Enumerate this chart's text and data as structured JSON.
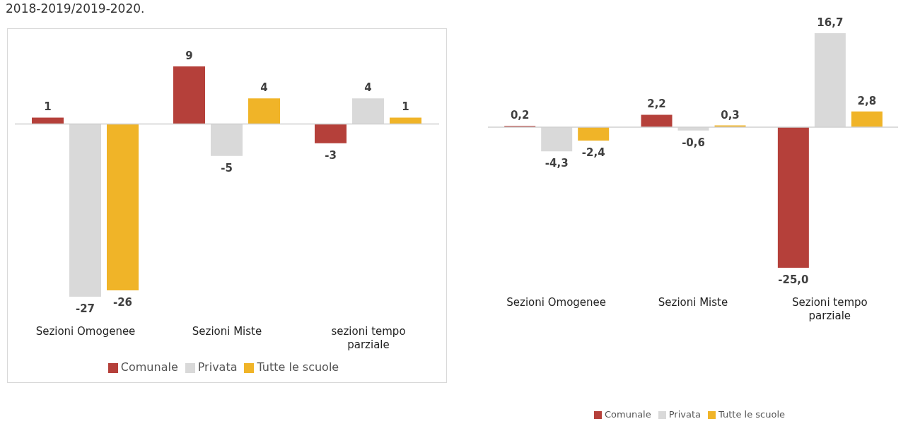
{
  "chart_data": [
    {
      "type": "bar",
      "annotations": [
        "2018-2019/2019-2020."
      ],
      "categories": [
        "Sezioni Omogenee",
        "Sezioni Miste",
        "sezioni tempo parziale"
      ],
      "series": [
        {
          "name": "Comunale",
          "color": "#b5403a",
          "values": [
            1,
            9,
            -3
          ]
        },
        {
          "name": "Privata",
          "color": "#d9d9d9",
          "values": [
            -27,
            -5,
            4
          ]
        },
        {
          "name": "Tutte le scuole",
          "color": "#f0b428",
          "values": [
            -26,
            4,
            1
          ]
        }
      ],
      "data_labels": true,
      "legend": "bottom",
      "grid": false
    },
    {
      "type": "bar",
      "categories": [
        "Sezioni Omogenee",
        "Sezioni Miste",
        "Sezioni tempo parziale"
      ],
      "series": [
        {
          "name": "Comunale",
          "color": "#b5403a",
          "values": [
            0.2,
            2.2,
            -25.0
          ],
          "value_labels": [
            "0,2",
            "2,2",
            "-25,0"
          ]
        },
        {
          "name": "Privata",
          "color": "#d9d9d9",
          "values": [
            -4.3,
            -0.6,
            16.7
          ],
          "value_labels": [
            "-4,3",
            "-0,6",
            "16,7"
          ]
        },
        {
          "name": "Tutte le scuole",
          "color": "#f0b428",
          "values": [
            -2.4,
            0.3,
            2.8
          ],
          "value_labels": [
            "-2,4",
            "0,3",
            "2,8"
          ]
        }
      ],
      "legend": "bottom",
      "grid": false
    }
  ]
}
